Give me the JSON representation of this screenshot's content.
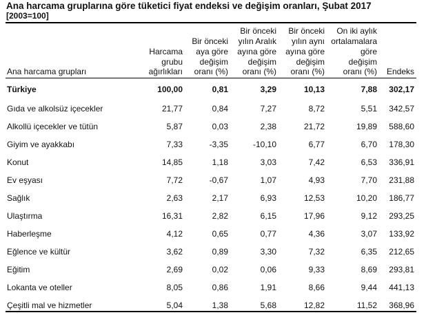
{
  "title": "Ana harcama gruplarına göre tüketici fiyat endeksi ve değişim oranları, Şubat 2017",
  "subtitle": "[2003=100]",
  "columns": [
    "Ana harcama grupları",
    "Harcama\ngrubu\nağırlıkları",
    "Bir önceki\naya göre\ndeğişim\noranı (%)",
    "Bir önceki\nyılın Aralık\nayına göre\ndeğişim\noranı (%)",
    "Bir önceki\nyılın aynı\nayına göre\ndeğişim\noranı (%)",
    "On iki aylık\nortalamalara\ngöre\ndeğişim\noranı (%)",
    "Endeks"
  ],
  "rows": [
    [
      "Türkiye",
      "100,00",
      "0,81",
      "3,29",
      "10,13",
      "7,88",
      "302,17"
    ],
    [
      "Gıda ve alkolsüz içecekler",
      "21,77",
      "0,84",
      "7,27",
      "8,72",
      "5,51",
      "342,57"
    ],
    [
      "Alkollü içecekler ve tütün",
      "5,87",
      "0,03",
      "2,38",
      "21,72",
      "19,89",
      "588,60"
    ],
    [
      "Giyim ve ayakkabı",
      "7,33",
      "-3,35",
      "-10,10",
      "6,77",
      "6,70",
      "178,30"
    ],
    [
      "Konut",
      "14,85",
      "1,18",
      "3,03",
      "7,42",
      "6,53",
      "336,91"
    ],
    [
      "Ev eşyası",
      "7,72",
      "-0,67",
      "1,07",
      "4,93",
      "7,70",
      "231,88"
    ],
    [
      "Sağlık",
      "2,63",
      "2,17",
      "6,93",
      "12,53",
      "10,20",
      "186,77"
    ],
    [
      "Ulaştırma",
      "16,31",
      "2,82",
      "6,15",
      "17,96",
      "9,12",
      "293,25"
    ],
    [
      "Haberleşme",
      "4,12",
      "0,65",
      "0,77",
      "4,36",
      "3,07",
      "133,92"
    ],
    [
      "Eğlence ve kültür",
      "3,62",
      "0,89",
      "3,30",
      "7,32",
      "6,35",
      "212,65"
    ],
    [
      "Eğitim",
      "2,69",
      "0,02",
      "0,06",
      "9,33",
      "8,69",
      "293,81"
    ],
    [
      "Lokanta ve oteller",
      "8,05",
      "0,86",
      "1,91",
      "8,66",
      "9,44",
      "441,13"
    ],
    [
      "Çeşitli mal ve hizmetler",
      "5,04",
      "1,38",
      "5,68",
      "12,82",
      "11,52",
      "368,96"
    ]
  ]
}
